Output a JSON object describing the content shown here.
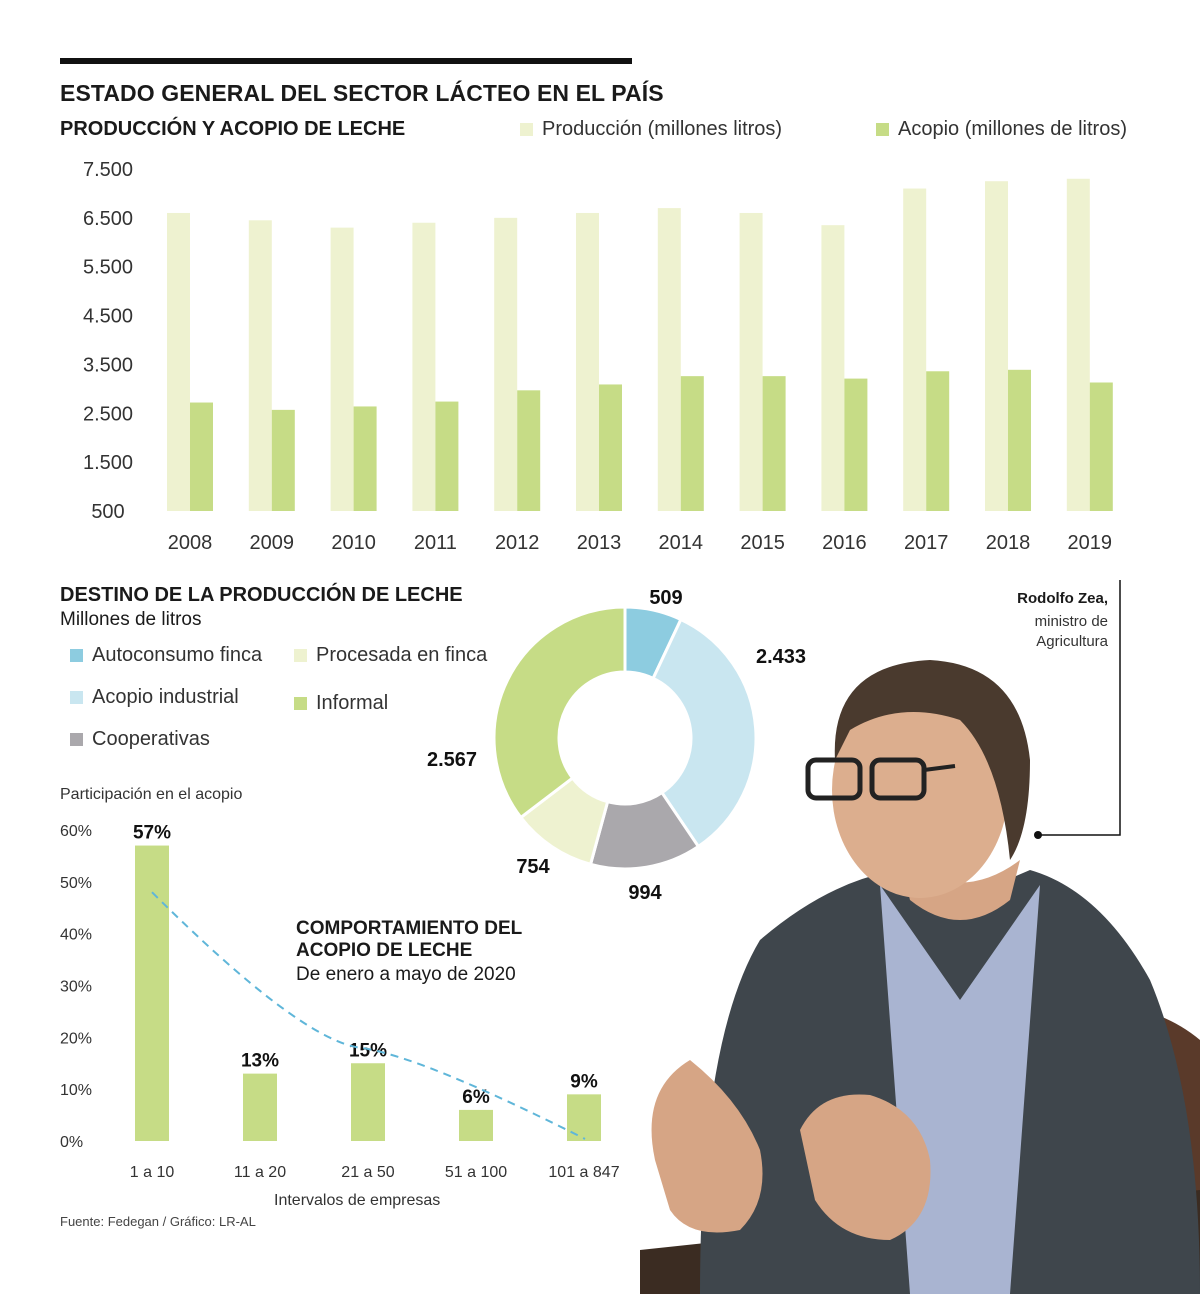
{
  "header": {
    "title": "ESTADO GENERAL DEL SECTOR LÁCTEO EN EL PAÍS"
  },
  "colors": {
    "production": "#eef2d0",
    "acopio": "#c6dc86",
    "autoconsumo": "#8dcce0",
    "procesada": "#eef2d0",
    "industrial": "#c9e6f0",
    "informal": "#c6dc86",
    "cooperativas": "#aaa8ac",
    "trend": "#5fb6d9"
  },
  "photo": {
    "name": "Rodolfo Zea,",
    "role_line1": "ministro de",
    "role_line2": "Agricultura"
  },
  "source": "Fuente: Fedegan / Gráfico: LR-AL",
  "chart_data": [
    {
      "type": "bar",
      "title": "PRODUCCIÓN Y ACOPIO DE LECHE",
      "categories": [
        "2008",
        "2009",
        "2010",
        "2011",
        "2012",
        "2013",
        "2014",
        "2015",
        "2016",
        "2017",
        "2018",
        "2019"
      ],
      "series": [
        {
          "name": "Producción (millones litros)",
          "values": [
            6600,
            6450,
            6300,
            6400,
            6500,
            6600,
            6700,
            6600,
            6350,
            7100,
            7250,
            7300
          ]
        },
        {
          "name": "Acopio (millones de litros)",
          "values": [
            2720,
            2570,
            2640,
            2740,
            2970,
            3090,
            3260,
            3260,
            3210,
            3360,
            3390,
            3130
          ]
        }
      ],
      "yticks": [
        "7.500",
        "6.500",
        "5.500",
        "4.500",
        "3.500",
        "2.500",
        "1.500",
        "500"
      ],
      "ylim": [
        500,
        7500
      ]
    },
    {
      "type": "pie",
      "title": "DESTINO DE LA PRODUCCIÓN DE LECHE",
      "subtitle": "Millones de litros",
      "slices": [
        {
          "name": "Autoconsumo finca",
          "value": 509,
          "label": "509"
        },
        {
          "name": "Acopio industrial",
          "value": 2433,
          "label": "2.433"
        },
        {
          "name": "Cooperativas",
          "value": 994,
          "label": "994"
        },
        {
          "name": "Procesada en finca",
          "value": 754,
          "label": "754"
        },
        {
          "name": "Informal",
          "value": 2567,
          "label": "2.567"
        }
      ]
    },
    {
      "type": "bar",
      "title": "COMPORTAMIENTO DEL ACOPIO DE LECHE",
      "subtitle": "De enero a mayo de 2020",
      "ylabel": "Participación en el acopio",
      "xlabel": "Intervalos de empresas",
      "categories": [
        "1 a 10",
        "11 a 20",
        "21 a 50",
        "51 a 100",
        "101 a 847"
      ],
      "values": [
        57,
        13,
        15,
        6,
        9
      ],
      "labels": [
        "57%",
        "13%",
        "15%",
        "6%",
        "9%"
      ],
      "yticks": [
        "60%",
        "50%",
        "40%",
        "30%",
        "20%",
        "10%",
        "0%"
      ],
      "ylim": [
        0,
        60
      ],
      "trendline": "dashed"
    }
  ]
}
